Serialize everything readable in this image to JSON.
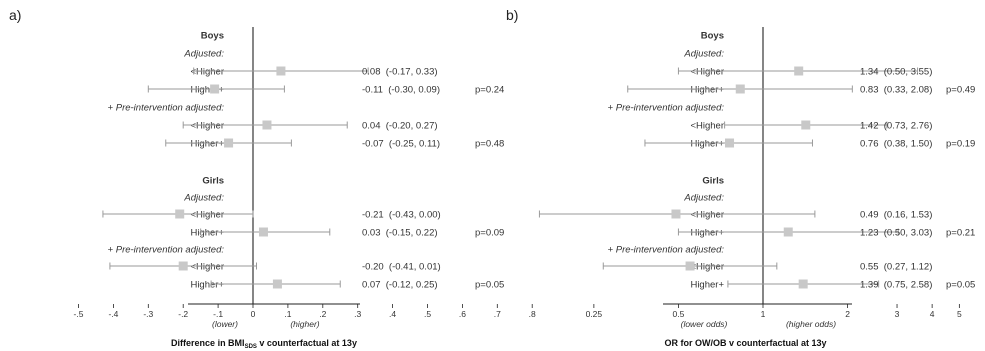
{
  "chart_data": [
    {
      "panel_label": "a)",
      "type": "forest",
      "xlabel_parts": [
        "Difference in BMI",
        "SDS",
        " v counterfactual at 13y"
      ],
      "xlim": [
        -0.5,
        0.8
      ],
      "xticks": [
        -0.5,
        -0.4,
        -0.3,
        -0.2,
        -0.1,
        0,
        0.1,
        0.2,
        0.3,
        0.4,
        0.5,
        0.6,
        0.7,
        0.8
      ],
      "xtick_labels": [
        "-.5",
        "-.4",
        "-.3",
        "-.2",
        "-.1",
        "0",
        ".1",
        ".2",
        ".3",
        ".4",
        ".5",
        ".6",
        ".7",
        ".8"
      ],
      "direction_labels": [
        "(lower)",
        "(higher)"
      ],
      "rows": [
        {
          "label": "Boys",
          "style": "header"
        },
        {
          "label": "Adjusted:",
          "style": "subheader"
        },
        {
          "label": "<Higher",
          "style": "item",
          "est": 0.08,
          "lo": -0.17,
          "hi": 0.33,
          "text": "0.08  (-0.17, 0.33)",
          "p": ""
        },
        {
          "label": "Higher+",
          "style": "item",
          "est": -0.11,
          "lo": -0.3,
          "hi": 0.09,
          "text": "-0.11  (-0.30, 0.09)",
          "p": "p=0.24"
        },
        {
          "label": "+ Pre-intervention adjusted:",
          "style": "subheader"
        },
        {
          "label": "<Higher",
          "style": "item",
          "est": 0.04,
          "lo": -0.2,
          "hi": 0.27,
          "text": "0.04  (-0.20, 0.27)",
          "p": ""
        },
        {
          "label": "Higher+",
          "style": "item",
          "est": -0.07,
          "lo": -0.25,
          "hi": 0.11,
          "text": "-0.07  (-0.25, 0.11)",
          "p": "p=0.48"
        },
        {
          "label": "",
          "style": "blank"
        },
        {
          "label": "Girls",
          "style": "header"
        },
        {
          "label": "Adjusted:",
          "style": "subheader"
        },
        {
          "label": "<Higher",
          "style": "item",
          "est": -0.21,
          "lo": -0.43,
          "hi": 0.0,
          "text": "-0.21  (-0.43, 0.00)",
          "p": ""
        },
        {
          "label": "Higher+",
          "style": "item",
          "est": 0.03,
          "lo": -0.15,
          "hi": 0.22,
          "text": "0.03  (-0.15, 0.22)",
          "p": "p=0.09"
        },
        {
          "label": "+ Pre-intervention adjusted:",
          "style": "subheader"
        },
        {
          "label": "<Higher",
          "style": "item",
          "est": -0.2,
          "lo": -0.41,
          "hi": 0.01,
          "text": "-0.20  (-0.41, 0.01)",
          "p": ""
        },
        {
          "label": "Higher+",
          "style": "item",
          "est": 0.07,
          "lo": -0.12,
          "hi": 0.25,
          "text": "0.07  (-0.12, 0.25)",
          "p": "p=0.05"
        }
      ]
    },
    {
      "panel_label": "b)",
      "type": "forest",
      "scale": "log",
      "xlabel_parts": [
        "OR for OW/OB v counterfactual at 13y"
      ],
      "xlim": [
        0.18,
        5.5
      ],
      "xticks": [
        0.25,
        0.5,
        1,
        2,
        3,
        4,
        5
      ],
      "xtick_labels": [
        "0.25",
        "0.5",
        "1",
        "2",
        "3",
        "4",
        "5"
      ],
      "direction_labels": [
        "(lower odds)",
        "(higher odds)"
      ],
      "rows": [
        {
          "label": "Boys",
          "style": "header"
        },
        {
          "label": "Adjusted:",
          "style": "subheader"
        },
        {
          "label": "<Higher",
          "style": "item",
          "est": 1.34,
          "lo": 0.5,
          "hi": 3.55,
          "text": "1.34  (0.50, 3.55)",
          "p": ""
        },
        {
          "label": "Higher+",
          "style": "item",
          "est": 0.83,
          "lo": 0.33,
          "hi": 2.08,
          "text": "0.83  (0.33, 2.08)",
          "p": "p=0.49"
        },
        {
          "label": "+ Pre-intervention adjusted:",
          "style": "subheader"
        },
        {
          "label": "<Higher",
          "style": "item",
          "est": 1.42,
          "lo": 0.73,
          "hi": 2.76,
          "text": "1.42  (0.73, 2.76)",
          "p": ""
        },
        {
          "label": "Higher+",
          "style": "item",
          "est": 0.76,
          "lo": 0.38,
          "hi": 1.5,
          "text": "0.76  (0.38, 1.50)",
          "p": "p=0.19"
        },
        {
          "label": "",
          "style": "blank"
        },
        {
          "label": "Girls",
          "style": "header"
        },
        {
          "label": "Adjusted:",
          "style": "subheader"
        },
        {
          "label": "<Higher",
          "style": "item",
          "est": 0.49,
          "lo": 0.16,
          "hi": 1.53,
          "text": "0.49  (0.16, 1.53)",
          "p": ""
        },
        {
          "label": "Higher+",
          "style": "item",
          "est": 1.23,
          "lo": 0.5,
          "hi": 3.03,
          "text": "1.23  (0.50, 3.03)",
          "p": "p=0.21"
        },
        {
          "label": "+ Pre-intervention adjusted:",
          "style": "subheader"
        },
        {
          "label": "<Higher",
          "style": "item",
          "est": 0.55,
          "lo": 0.27,
          "hi": 1.12,
          "text": "0.55  (0.27, 1.12)",
          "p": ""
        },
        {
          "label": "Higher+",
          "style": "item",
          "est": 1.39,
          "lo": 0.75,
          "hi": 2.58,
          "text": "1.39  (0.75, 2.58)",
          "p": "p=0.05"
        }
      ]
    }
  ],
  "colors": {
    "marker": "#c8c8c8",
    "ci_line": "#9a9a9a",
    "axis": "#222222",
    "text": "#333333"
  }
}
